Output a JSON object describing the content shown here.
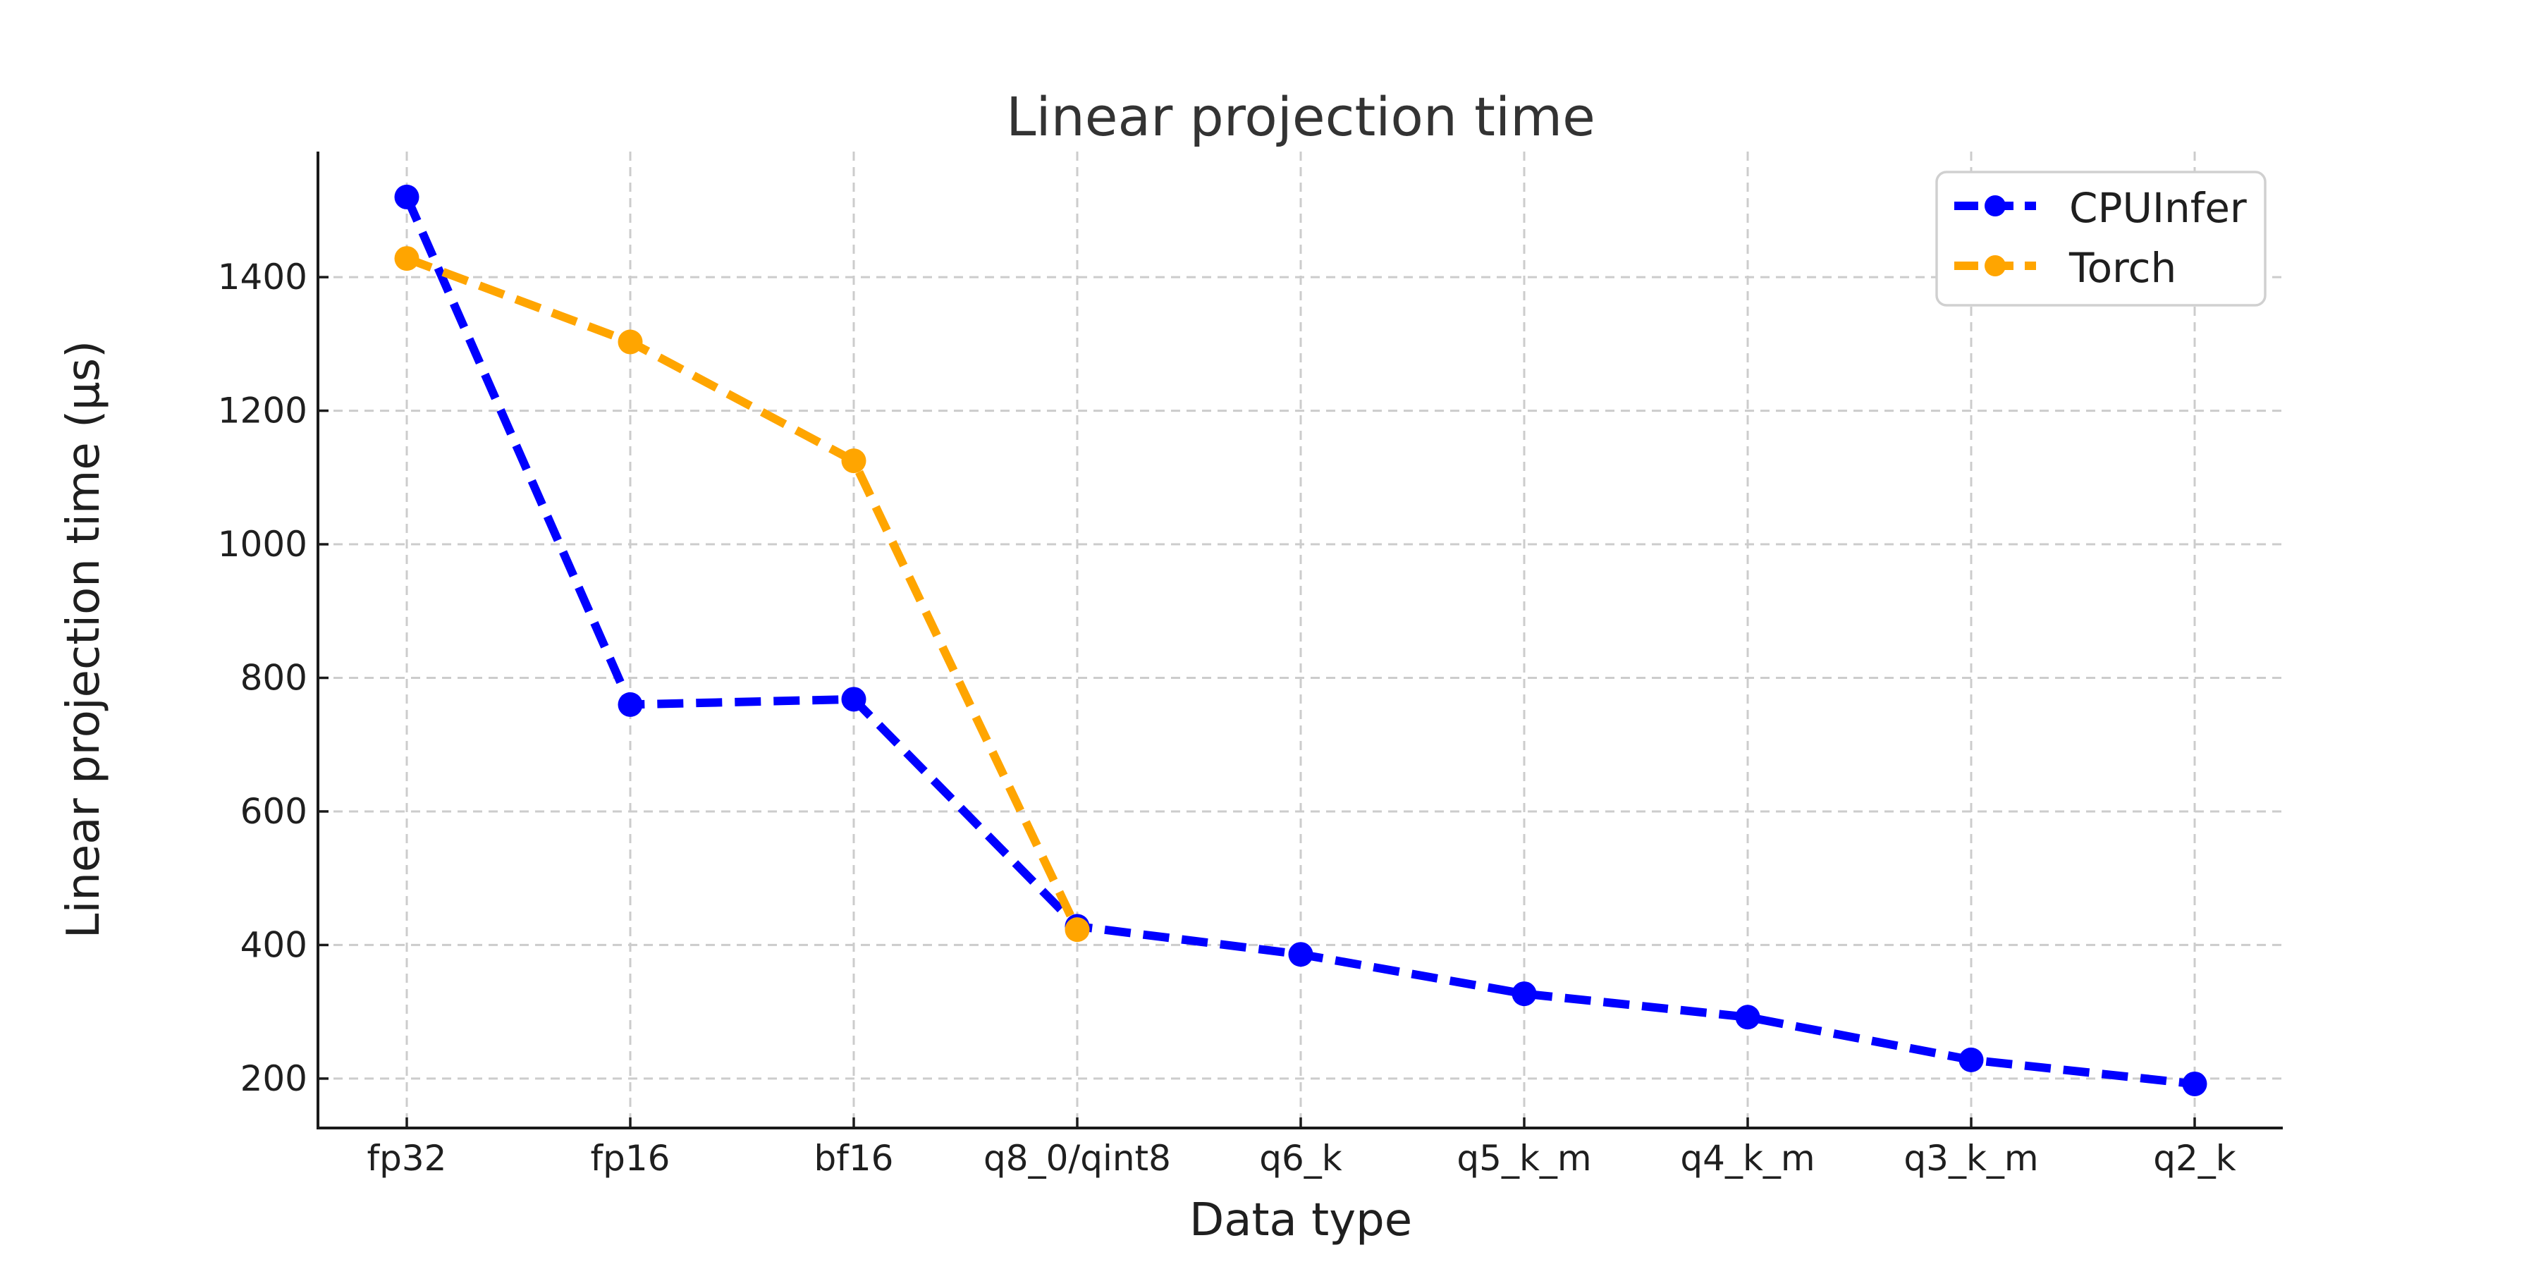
{
  "chart_data": {
    "type": "line",
    "title": "Linear projection time",
    "xlabel": "Data type",
    "ylabel": "Linear projection time (µs)",
    "categories": [
      "fp32",
      "fp16",
      "bf16",
      "q8_0/qint8",
      "q6_k",
      "q5_k_m",
      "q4_k_m",
      "q3_k_m",
      "q2_k"
    ],
    "series": [
      {
        "name": "CPUInfer",
        "color": "#0000ff",
        "values": [
          1520,
          760,
          768,
          428,
          386,
          327,
          292,
          228,
          192
        ]
      },
      {
        "name": "Torch",
        "color": "#ffa500",
        "values": [
          1428,
          1303,
          1125,
          423,
          null,
          null,
          null,
          null,
          null
        ]
      }
    ],
    "yticks": [
      200,
      400,
      600,
      800,
      1000,
      1200,
      1400
    ],
    "ylim": [
      126,
      1588
    ],
    "grid": true,
    "grid_style": "dashed",
    "line_style": "dashed",
    "marker": "circle",
    "legend_position": "upper right",
    "legend_labels": [
      "CPUInfer",
      "Torch"
    ]
  },
  "style": {
    "background": "#ffffff",
    "grid_color": "#cccccc",
    "spine_color": "#1a1a1a",
    "tick_text_color": "#1f1f1f",
    "title_color": "#333333",
    "legend_border_color": "#d0d0d0",
    "legend_text_color": "#1f1f1f"
  }
}
